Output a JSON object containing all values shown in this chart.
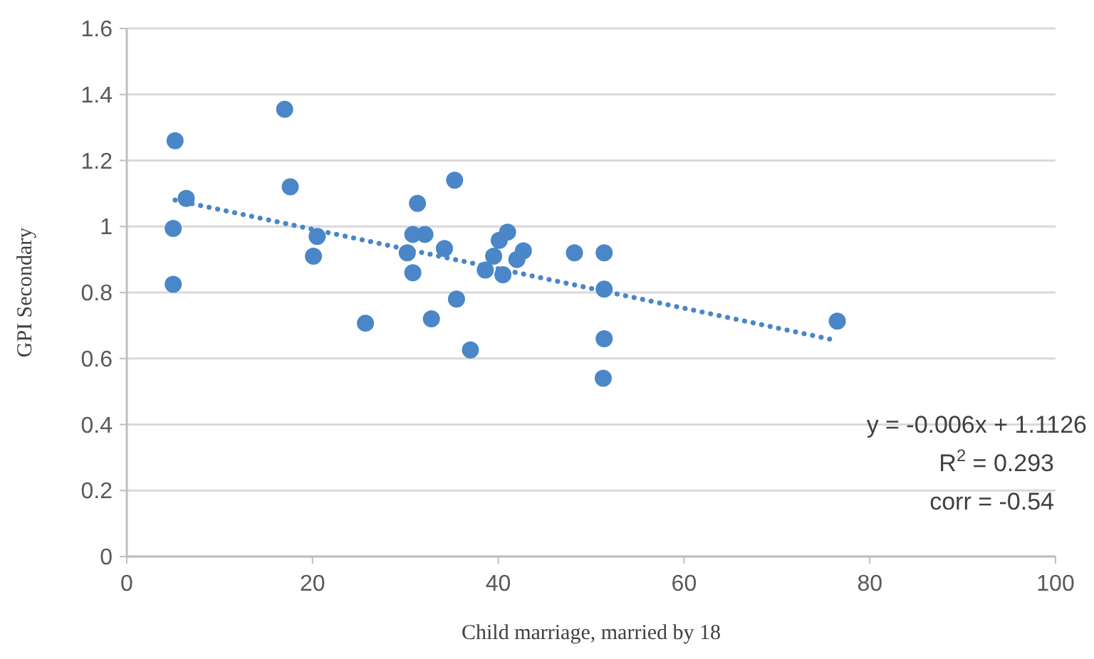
{
  "chart_data": {
    "type": "scatter",
    "xlabel": "Child marriage, married by 18",
    "ylabel": "GPI Secondary",
    "xlim": [
      0,
      100
    ],
    "xticks": [
      0,
      20,
      40,
      60,
      80,
      100
    ],
    "ylim": [
      0,
      1.6
    ],
    "yticks": [
      0,
      0.2,
      0.4,
      0.6,
      0.8,
      1,
      1.2,
      1.4,
      1.6
    ],
    "grid": "y",
    "marker": "circle",
    "series": [
      {
        "color": "#4a86c8",
        "x": [
          5.2,
          17.0,
          17.6,
          6.4,
          5.0,
          20.5,
          20.1,
          5.0,
          25.7,
          31.3,
          30.8,
          32.1,
          30.2,
          30.8,
          35.3,
          34.2,
          35.5,
          32.8,
          37.0,
          41.0,
          40.1,
          39.5,
          38.6,
          40.5,
          42.7,
          42.0,
          48.2,
          51.4,
          51.4,
          51.4,
          51.3,
          76.5
        ],
        "values": [
          1.26,
          1.355,
          1.12,
          1.085,
          0.994,
          0.97,
          0.91,
          0.825,
          0.707,
          1.07,
          0.976,
          0.976,
          0.92,
          0.86,
          1.14,
          0.933,
          0.78,
          0.72,
          0.626,
          0.983,
          0.958,
          0.91,
          0.868,
          0.854,
          0.926,
          0.9,
          0.92,
          0.92,
          0.81,
          0.66,
          0.54,
          0.713
        ]
      },
      {
        "type": "line",
        "color": "#4a86c8",
        "line_style": "dotted",
        "marker": "none",
        "x": [
          5.2,
          76.3
        ],
        "values": [
          1.08,
          0.655
        ]
      }
    ],
    "annotations": [
      "y = -0.006x + 1.1126",
      "R$^{2}$ = 0.293",
      "corr = -0.54"
    ]
  }
}
